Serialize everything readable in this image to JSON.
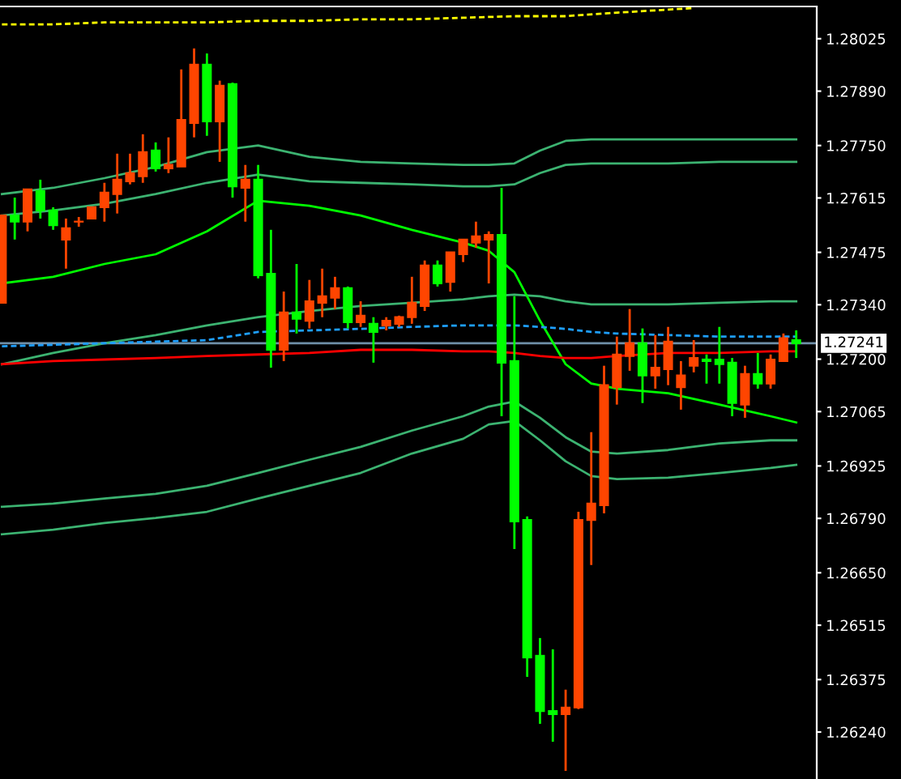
{
  "chart_data": {
    "type": "candlestick",
    "categories": [
      null,
      null,
      null,
      null,
      null,
      null,
      null,
      null,
      null,
      null,
      null,
      null,
      null,
      null,
      null,
      null,
      null,
      null,
      null,
      null,
      null,
      null,
      null,
      null,
      null,
      null,
      null,
      null,
      null,
      null,
      null,
      null,
      null,
      null,
      null,
      null,
      null,
      null,
      null,
      null,
      null,
      null,
      null,
      null,
      null,
      null,
      null,
      null,
      null,
      null,
      null,
      null,
      null,
      null,
      null,
      null,
      null,
      null,
      null,
      null,
      null,
      null,
      null
    ],
    "ohlc": [
      [
        1.27345,
        1.2757,
        1.27345,
        1.2757
      ],
      [
        1.2757,
        1.27616,
        1.27508,
        1.27554
      ],
      [
        1.27554,
        1.27637,
        1.27529,
        1.27637
      ],
      [
        1.27633,
        1.27662,
        1.27562,
        1.27583
      ],
      [
        1.27583,
        1.27591,
        1.27533,
        1.27545
      ],
      [
        1.27508,
        1.27562,
        1.27433,
        1.27537
      ],
      [
        1.27554,
        1.27566,
        1.27541,
        1.27554
      ],
      [
        1.27562,
        1.27591,
        1.27562,
        1.27591
      ],
      [
        1.27591,
        1.27654,
        1.27554,
        1.27629
      ],
      [
        1.27625,
        1.27729,
        1.27575,
        1.27662
      ],
      [
        1.27658,
        1.27729,
        1.2765,
        1.27679
      ],
      [
        1.27671,
        1.27779,
        1.27654,
        1.27733
      ],
      [
        1.27737,
        1.27758,
        1.27683,
        1.27691
      ],
      [
        1.27691,
        1.27771,
        1.27679,
        1.277
      ],
      [
        1.27696,
        1.27946,
        1.27696,
        1.27816
      ],
      [
        1.27808,
        1.28,
        1.27771,
        1.27958
      ],
      [
        1.27958,
        1.27987,
        1.27775,
        1.27812
      ],
      [
        1.27812,
        1.27917,
        1.27708,
        1.27904
      ],
      [
        1.27908,
        1.27912,
        1.27616,
        1.27645
      ],
      [
        1.27641,
        1.277,
        1.27554,
        1.27662
      ],
      [
        1.27662,
        1.277,
        1.27408,
        1.27416
      ],
      [
        1.2742,
        1.27533,
        1.27178,
        1.27224
      ],
      [
        1.27224,
        1.27374,
        1.27195,
        1.2732
      ],
      [
        1.2732,
        1.27445,
        1.27266,
        1.27304
      ],
      [
        1.27299,
        1.27404,
        1.27279,
        1.27349
      ],
      [
        1.27345,
        1.27433,
        1.27308,
        1.27362
      ],
      [
        1.27358,
        1.27412,
        1.27329,
        1.27383
      ],
      [
        1.27383,
        1.27387,
        1.27279,
        1.27295
      ],
      [
        1.27295,
        1.27349,
        1.27283,
        1.27312
      ],
      [
        1.27291,
        1.27308,
        1.27191,
        1.2727
      ],
      [
        1.27287,
        1.27308,
        1.27274,
        1.27299
      ],
      [
        1.27291,
        1.27312,
        1.27283,
        1.27308
      ],
      [
        1.27308,
        1.27412,
        1.27291,
        1.27345
      ],
      [
        1.27337,
        1.27454,
        1.27324,
        1.27441
      ],
      [
        1.27441,
        1.27454,
        1.27387,
        1.27395
      ],
      [
        1.27399,
        1.27475,
        1.27374,
        1.27475
      ],
      [
        1.2747,
        1.27508,
        1.2745,
        1.27508
      ],
      [
        1.275,
        1.27554,
        1.27487,
        1.27516
      ],
      [
        1.27508,
        1.27529,
        1.27395,
        1.2752
      ],
      [
        1.2752,
        1.27641,
        1.27053,
        1.27191
      ],
      [
        1.27195,
        1.27362,
        1.26711,
        1.26782
      ],
      [
        1.26786,
        1.26795,
        1.26382,
        1.26432
      ],
      [
        1.26436,
        1.26482,
        1.26261,
        1.26294
      ],
      [
        1.26294,
        1.26453,
        1.26215,
        1.26286
      ],
      [
        1.26286,
        1.26349,
        1.2614,
        1.26303
      ],
      [
        1.26303,
        1.26807,
        1.26299,
        1.26786
      ],
      [
        1.26786,
        1.27012,
        1.2667,
        1.26828
      ],
      [
        1.26824,
        1.27183,
        1.26803,
        1.27133
      ],
      [
        1.27128,
        1.27258,
        1.27083,
        1.27212
      ],
      [
        1.27208,
        1.27329,
        1.2717,
        1.27241
      ],
      [
        1.27241,
        1.27279,
        1.27087,
        1.27158
      ],
      [
        1.27158,
        1.27262,
        1.27124,
        1.27178
      ],
      [
        1.27174,
        1.27283,
        1.27133,
        1.27245
      ],
      [
        1.27128,
        1.27195,
        1.2707,
        1.27158
      ],
      [
        1.27183,
        1.27249,
        1.27166,
        1.27203
      ],
      [
        1.27199,
        1.27212,
        1.27137,
        1.27195
      ],
      [
        1.27199,
        1.27283,
        1.27137,
        1.27187
      ],
      [
        1.27191,
        1.27203,
        1.27053,
        1.27087
      ],
      [
        1.27083,
        1.27183,
        1.27049,
        1.27162
      ],
      [
        1.27162,
        1.27216,
        1.27124,
        1.27137
      ],
      [
        1.27137,
        1.27212,
        1.27124,
        1.27199
      ],
      [
        1.27195,
        1.27266,
        1.27195,
        1.27254
      ],
      [
        1.27249,
        1.27274,
        1.27203,
        1.27241
      ]
    ],
    "colors": [
      "#ff4500",
      "#00ff00",
      "#ff4500",
      "#00ff00",
      "#00ff00",
      "#ff4500",
      "#ff4500",
      "#ff4500",
      "#ff4500",
      "#ff4500",
      "#ff4500",
      "#ff4500",
      "#00ff00",
      "#ff4500",
      "#ff4500",
      "#ff4500",
      "#00ff00",
      "#ff4500",
      "#00ff00",
      "#ff4500",
      "#00ff00",
      "#00ff00",
      "#ff4500",
      "#00ff00",
      "#ff4500",
      "#ff4500",
      "#ff4500",
      "#00ff00",
      "#ff4500",
      "#00ff00",
      "#ff4500",
      "#ff4500",
      "#ff4500",
      "#ff4500",
      "#00ff00",
      "#ff4500",
      "#ff4500",
      "#ff4500",
      "#ff4500",
      "#00ff00",
      "#00ff00",
      "#00ff00",
      "#00ff00",
      "#00ff00",
      "#ff4500",
      "#ff4500",
      "#ff4500",
      "#ff4500",
      "#ff4500",
      "#ff4500",
      "#00ff00",
      "#ff4500",
      "#ff4500",
      "#ff4500",
      "#ff4500",
      "#00ff00",
      "#00ff00",
      "#00ff00",
      "#ff4500",
      "#00ff00",
      "#ff4500",
      "#ff4500",
      "#00ff00"
    ],
    "series": [
      {
        "type": "line",
        "color": "#3cb371",
        "values": [
          1.27625,
          null,
          null,
          null,
          1.27641,
          null,
          null,
          null,
          1.27666,
          null,
          null,
          null,
          1.27695,
          null,
          null,
          null,
          1.27733,
          null,
          null,
          null,
          1.2775,
          null,
          null,
          null,
          1.27721,
          null,
          null,
          null,
          1.27708,
          null,
          null,
          null,
          1.27704,
          null,
          null,
          null,
          1.277,
          null,
          1.277,
          null,
          1.27704,
          null,
          1.27737,
          null,
          1.27762,
          null,
          1.27766,
          null,
          1.27766,
          null,
          null,
          null,
          1.27766,
          null,
          null,
          null,
          1.27766,
          null,
          null,
          null,
          1.27766,
          null,
          1.27766
        ]
      },
      {
        "type": "line",
        "color": "#3cb371",
        "values": [
          1.2757,
          null,
          null,
          null,
          1.27583,
          null,
          null,
          null,
          1.276,
          null,
          null,
          null,
          1.27625,
          null,
          null,
          null,
          1.27654,
          null,
          null,
          null,
          1.27675,
          null,
          null,
          null,
          1.27658,
          null,
          null,
          null,
          1.27654,
          null,
          null,
          null,
          1.2765,
          null,
          null,
          null,
          1.27645,
          null,
          1.27645,
          null,
          1.2765,
          null,
          1.27679,
          null,
          1.277,
          null,
          1.27704,
          null,
          1.27704,
          null,
          null,
          null,
          1.27704,
          null,
          null,
          null,
          1.27708,
          null,
          null,
          null,
          1.27708,
          null,
          1.27708
        ]
      },
      {
        "type": "line",
        "color": "#3cb371",
        "values": [
          1.27187,
          null,
          null,
          null,
          1.27216,
          null,
          null,
          null,
          1.27241,
          null,
          null,
          null,
          1.27262,
          null,
          null,
          null,
          1.27287,
          null,
          null,
          null,
          1.27308,
          null,
          null,
          null,
          1.27324,
          null,
          null,
          null,
          1.27337,
          null,
          null,
          null,
          1.27345,
          null,
          null,
          null,
          1.27354,
          null,
          1.27362,
          null,
          1.27366,
          null,
          1.27362,
          null,
          1.27349,
          null,
          1.27341,
          null,
          1.27341,
          null,
          null,
          null,
          1.27341,
          null,
          null,
          null,
          1.27345,
          null,
          null,
          null,
          1.27349,
          null,
          1.27349
        ]
      },
      {
        "type": "line",
        "color": "#3cb371",
        "values": [
          1.2682,
          null,
          null,
          null,
          1.26828,
          null,
          null,
          null,
          1.26841,
          null,
          null,
          null,
          1.26853,
          null,
          null,
          null,
          1.26874,
          null,
          null,
          null,
          1.26907,
          null,
          null,
          null,
          1.26941,
          null,
          null,
          null,
          1.26974,
          null,
          null,
          null,
          1.27016,
          null,
          null,
          null,
          1.27053,
          null,
          1.27078,
          null,
          1.27091,
          null,
          1.27049,
          null,
          1.26999,
          null,
          1.26962,
          null,
          1.26957,
          null,
          null,
          null,
          1.26966,
          null,
          null,
          null,
          1.26983,
          null,
          null,
          null,
          1.26991,
          null,
          1.26991
        ]
      },
      {
        "type": "line",
        "color": "#3cb371",
        "values": [
          1.26749,
          null,
          null,
          null,
          1.26761,
          null,
          null,
          null,
          1.26778,
          null,
          null,
          null,
          1.26791,
          null,
          null,
          null,
          1.26807,
          null,
          null,
          null,
          1.26841,
          null,
          null,
          null,
          1.26874,
          null,
          null,
          null,
          1.26907,
          null,
          null,
          null,
          1.26957,
          null,
          null,
          null,
          1.26995,
          null,
          1.27032,
          null,
          1.27041,
          null,
          1.26991,
          null,
          1.26937,
          null,
          1.26899,
          null,
          1.26891,
          null,
          null,
          null,
          1.26895,
          null,
          null,
          null,
          1.26907,
          null,
          null,
          null,
          1.2692,
          null,
          1.26928
        ]
      },
      {
        "type": "line",
        "color": "#00ff00",
        "values": [
          1.27395,
          null,
          null,
          null,
          1.27412,
          null,
          null,
          null,
          1.27445,
          null,
          null,
          null,
          1.2747,
          null,
          null,
          null,
          1.27529,
          null,
          null,
          null,
          1.27608,
          null,
          null,
          null,
          1.27595,
          null,
          null,
          null,
          1.2757,
          null,
          null,
          null,
          1.27533,
          null,
          null,
          null,
          1.275,
          null,
          1.27479,
          null,
          1.27424,
          null,
          1.27299,
          null,
          1.27187,
          null,
          1.27137,
          null,
          1.27124,
          null,
          null,
          null,
          1.27112,
          null,
          null,
          null,
          1.27083,
          null,
          null,
          null,
          1.27053,
          null,
          1.27037
        ]
      },
      {
        "type": "line",
        "color": "#ff0000",
        "values": [
          1.27187,
          null,
          null,
          null,
          1.27195,
          null,
          null,
          null,
          1.27199,
          null,
          null,
          null,
          1.27203,
          null,
          null,
          null,
          1.27208,
          null,
          null,
          null,
          1.27212,
          null,
          null,
          null,
          1.27216,
          null,
          null,
          null,
          1.27224,
          null,
          null,
          null,
          1.27224,
          null,
          null,
          null,
          1.2722,
          null,
          1.2722,
          null,
          1.27216,
          null,
          1.27208,
          null,
          1.27203,
          null,
          1.27203,
          null,
          1.27208,
          null,
          null,
          null,
          1.27216,
          null,
          null,
          null,
          1.27216,
          null,
          null,
          null,
          1.2722,
          null,
          1.2722
        ]
      },
      {
        "type": "line",
        "color": "#1e9fff",
        "line_style": "dashed",
        "values": [
          1.27233,
          null,
          null,
          null,
          1.27237,
          null,
          null,
          null,
          1.27241,
          null,
          null,
          null,
          1.27245,
          null,
          null,
          null,
          1.27249,
          null,
          null,
          null,
          1.2727,
          null,
          null,
          null,
          1.27274,
          null,
          null,
          null,
          1.27278,
          null,
          null,
          null,
          1.27283,
          null,
          null,
          null,
          1.27287,
          null,
          1.27287,
          null,
          1.27287,
          null,
          1.27283,
          null,
          1.27278,
          null,
          1.2727,
          null,
          1.27266,
          null,
          null,
          null,
          1.27262,
          null,
          null,
          null,
          1.27258,
          null,
          null,
          null,
          1.27258,
          null,
          1.27258
        ]
      },
      {
        "type": "line",
        "color": "#ffff00",
        "line_style": "dashed",
        "values": [
          1.28062,
          null,
          null,
          null,
          1.28062,
          null,
          null,
          null,
          1.28067,
          null,
          null,
          null,
          1.28067,
          null,
          null,
          null,
          1.28067,
          null,
          null,
          null,
          1.28071,
          null,
          null,
          null,
          1.28071,
          null,
          null,
          null,
          1.28075,
          null,
          null,
          null,
          1.28075,
          null,
          null,
          null,
          1.28079,
          null,
          null,
          null,
          1.28083,
          null,
          null,
          null,
          1.28083,
          null,
          null,
          null,
          1.28092,
          null,
          null,
          null,
          1.281,
          null,
          1.28104,
          null,
          null,
          null,
          null,
          null,
          null,
          null,
          null
        ]
      }
    ],
    "ylim": [
      1.26119,
      1.28108
    ],
    "yticks": [
      {
        "value": 1.28025,
        "label": "1.28025"
      },
      {
        "value": 1.2789,
        "label": "1.27890"
      },
      {
        "value": 1.2775,
        "label": "1.27750"
      },
      {
        "value": 1.27615,
        "label": "1.27615"
      },
      {
        "value": 1.27475,
        "label": "1.27475"
      },
      {
        "value": 1.2734,
        "label": "1.27340"
      },
      {
        "value": 1.272,
        "label": "1.27200"
      },
      {
        "value": 1.27065,
        "label": "1.27065"
      },
      {
        "value": 1.26925,
        "label": "1.26925"
      },
      {
        "value": 1.2679,
        "label": "1.26790"
      },
      {
        "value": 1.2665,
        "label": "1.26650"
      },
      {
        "value": 1.26515,
        "label": "1.26515"
      },
      {
        "value": 1.26375,
        "label": "1.26375"
      },
      {
        "value": 1.2624,
        "label": "1.26240"
      }
    ],
    "ref_lines": [
      {
        "axis": "y",
        "value": 1.27241,
        "label": "1.27241",
        "color": "#6f8fa8"
      }
    ],
    "tick_labels": "y",
    "grid": false,
    "legend": false
  }
}
